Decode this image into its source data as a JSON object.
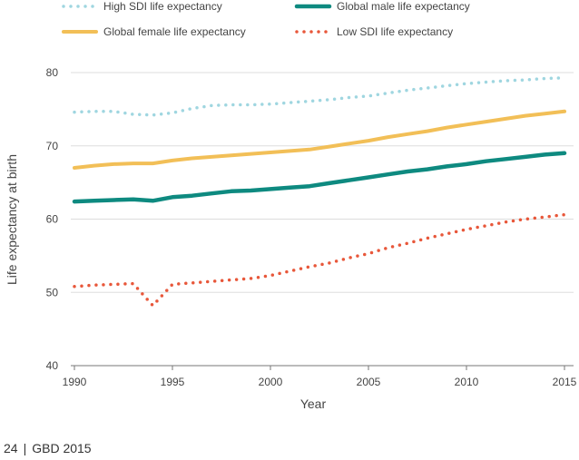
{
  "chart_data": {
    "type": "line",
    "xlabel": "Year",
    "ylabel": "Life expectancy at birth",
    "xlim": [
      1990,
      2015
    ],
    "ylim": [
      40,
      80
    ],
    "x_ticks": [
      1990,
      1995,
      2000,
      2005,
      2010,
      2015
    ],
    "y_ticks": [
      40,
      50,
      60,
      70,
      80
    ],
    "grid": "horizontal",
    "legend_position": "top",
    "x": [
      1990,
      1991,
      1992,
      1993,
      1994,
      1995,
      1996,
      1997,
      1998,
      1999,
      2000,
      2001,
      2002,
      2003,
      2004,
      2005,
      2006,
      2007,
      2008,
      2009,
      2010,
      2011,
      2012,
      2013,
      2014,
      2015
    ],
    "series": [
      {
        "name": "High SDI life expectancy",
        "color": "#9fd6e0",
        "style": "dotted",
        "values": [
          74.6,
          74.7,
          74.7,
          74.3,
          74.2,
          74.5,
          75.1,
          75.5,
          75.6,
          75.6,
          75.7,
          75.9,
          76.1,
          76.3,
          76.6,
          76.8,
          77.2,
          77.6,
          77.9,
          78.2,
          78.5,
          78.7,
          78.9,
          79.0,
          79.2,
          79.3
        ]
      },
      {
        "name": "Global male life expectancy",
        "color": "#0e8a80",
        "style": "solid-thick",
        "values": [
          62.4,
          62.5,
          62.6,
          62.7,
          62.5,
          63.0,
          63.2,
          63.5,
          63.8,
          63.9,
          64.1,
          64.3,
          64.5,
          64.9,
          65.3,
          65.7,
          66.1,
          66.5,
          66.8,
          67.2,
          67.5,
          67.9,
          68.2,
          68.5,
          68.8,
          69.0
        ]
      },
      {
        "name": "Global female life expectancy",
        "color": "#f2bf57",
        "style": "solid",
        "values": [
          67.0,
          67.3,
          67.5,
          67.6,
          67.6,
          68.0,
          68.3,
          68.5,
          68.7,
          68.9,
          69.1,
          69.3,
          69.5,
          69.9,
          70.3,
          70.7,
          71.2,
          71.6,
          72.0,
          72.5,
          72.9,
          73.3,
          73.7,
          74.1,
          74.4,
          74.7
        ]
      },
      {
        "name": "Low SDI life expectancy",
        "color": "#e8573a",
        "style": "dotted",
        "values": [
          50.8,
          51.0,
          51.1,
          51.2,
          48.2,
          51.1,
          51.3,
          51.5,
          51.7,
          51.9,
          52.3,
          52.9,
          53.5,
          54.0,
          54.7,
          55.3,
          56.1,
          56.7,
          57.4,
          58.0,
          58.6,
          59.1,
          59.6,
          60.0,
          60.3,
          60.6
        ]
      }
    ]
  },
  "footer": {
    "page_number": "24",
    "separator": "|",
    "publication": "GBD 2015"
  }
}
